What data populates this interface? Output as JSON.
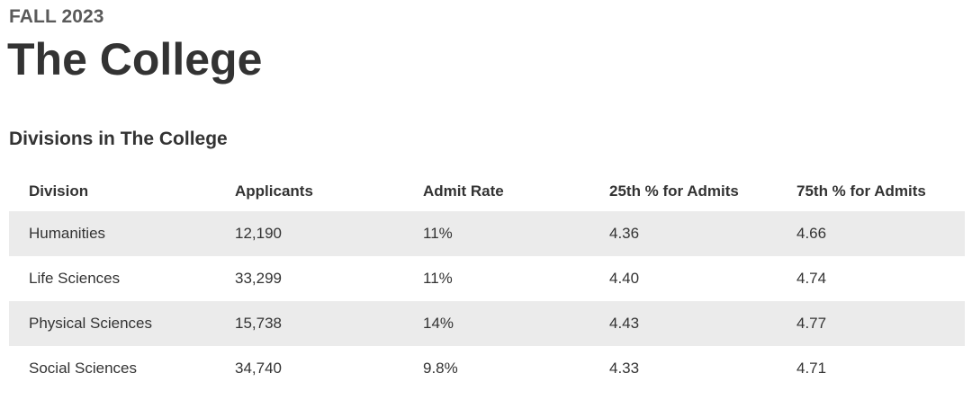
{
  "header": {
    "eyebrow": "FALL 2023",
    "title": "The College"
  },
  "section": {
    "title": "Divisions in The College"
  },
  "table": {
    "columns": [
      "Division",
      "Applicants",
      "Admit Rate",
      "25th % for Admits",
      "75th % for Admits"
    ],
    "rows": [
      [
        "Humanities",
        "12,190",
        "11%",
        "4.36",
        "4.66"
      ],
      [
        "Life Sciences",
        "33,299",
        "11%",
        "4.40",
        "4.74"
      ],
      [
        "Physical Sciences",
        "15,738",
        "14%",
        "4.43",
        "4.77"
      ],
      [
        "Social Sciences",
        "34,740",
        "9.8%",
        "4.33",
        "4.71"
      ]
    ]
  },
  "colors": {
    "text": "#333333",
    "eyebrow": "#5a5a5a",
    "row_stripe": "#ebebeb",
    "background": "#ffffff"
  }
}
